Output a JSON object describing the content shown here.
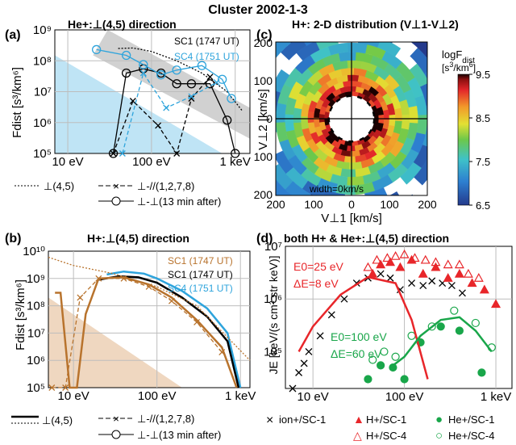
{
  "figure": {
    "title": "Cluster 2002-1-3"
  },
  "legend_a": {
    "dotted": "⊥(4,5)",
    "dashx": "⊥-//(1,2,7,8)",
    "circ": "⊥-⊥(13 min after)"
  },
  "legend_b": {
    "solid": "⊥(4,5)",
    "dashx": "⊥-//(1,2,7,8)",
    "circ": "⊥-⊥(13 min after)"
  },
  "legend_d": [
    {
      "label": "ion+/SC-1",
      "symbol": "×",
      "color": "#000000"
    },
    {
      "label": "H+/SC-1",
      "symbol": "▲",
      "color": "#e8262a"
    },
    {
      "label": "He+/SC-1",
      "symbol": "●",
      "color": "#19a64a"
    },
    {
      "label": "H+/SC-4",
      "symbol": "△",
      "color": "#e8262a"
    },
    {
      "label": "He+/SC-4",
      "symbol": "○",
      "color": "#19a64a"
    }
  ],
  "colors": {
    "sc1_a": "#000000",
    "sc4": "#2ea4dc",
    "sc1_b": "#b8732d",
    "h": "#e8262a",
    "he": "#19a64a",
    "bg_blue": "#bfe4f5",
    "bg_tan": "#efd7c0"
  },
  "chart_data": [
    {
      "id": "a",
      "panel_label": "(a)",
      "title": "He+:⊥(4,5) direction",
      "type": "line",
      "xscale": "log",
      "yscale": "log",
      "xlim": [
        7,
        1500
      ],
      "ylim": [
        100000,
        1000000000
      ],
      "xticks": [
        10,
        100,
        1000
      ],
      "xtick_labels": [
        "10 eV",
        "100 eV",
        "1 keV"
      ],
      "yticks": [
        100000,
        1000000,
        10000000,
        100000000,
        1000000000
      ],
      "ytick_labels": [
        "10⁵",
        "10⁶",
        "10⁷",
        "10⁸",
        "10⁹"
      ],
      "ylabel": "Fdist [s³/km⁶]",
      "annotations": [
        "SC1 (1747 UT)",
        "SC4 (1751 UT)"
      ],
      "series": [
        {
          "name": "SC1 (1747 UT)",
          "style": "dotted",
          "color": "#000000",
          "x": [
            40,
            60,
            100,
            200,
            400,
            800,
            1200
          ],
          "y": [
            250000000,
            260000000,
            200000000,
            100000000,
            40000000,
            10000000,
            2500000
          ]
        },
        {
          "name": "SC1 (1747 UT)",
          "style": "solid-circle",
          "color": "#000000",
          "x": [
            35,
            50,
            80,
            130,
            200,
            300,
            500,
            800,
            1000
          ],
          "y": [
            100000,
            40000000,
            55000000,
            40000000,
            18000000,
            18000000,
            18000000,
            1200000,
            100000
          ]
        },
        {
          "name": "SC1 (1747 UT)",
          "style": "dash-x",
          "color": "#000000",
          "x": [
            35,
            60,
            120,
            200,
            300,
            500
          ],
          "y": [
            100000,
            5000000,
            800000,
            100000,
            6000000,
            30000000
          ]
        },
        {
          "name": "SC4 (1751 UT)",
          "style": "solid-circle",
          "color": "#2ea4dc",
          "x": [
            22,
            50,
            80,
            130,
            200,
            400,
            700,
            900
          ],
          "y": [
            230000000,
            150000000,
            75000000,
            35000000,
            50000000,
            70000000,
            25000000,
            6000000
          ]
        },
        {
          "name": "SC4 (1751 UT)",
          "style": "dash-x",
          "color": "#2ea4dc",
          "x": [
            45,
            80,
            150,
            300,
            600
          ],
          "y": [
            100000,
            40000000,
            3000000,
            7000000,
            20000000
          ]
        }
      ]
    },
    {
      "id": "b",
      "panel_label": "(b)",
      "title": "H+:⊥(4,5) direction",
      "type": "line",
      "xscale": "log",
      "yscale": "log",
      "xlim": [
        5,
        1300
      ],
      "ylim": [
        100000,
        10000000000
      ],
      "xticks": [
        10,
        100,
        1000
      ],
      "xtick_labels": [
        "10 eV",
        "100 eV",
        "1 keV"
      ],
      "yticks": [
        100000,
        1000000,
        10000000,
        100000000,
        1000000000,
        10000000000
      ],
      "ytick_labels": [
        "10⁵",
        "10⁶",
        "10⁷",
        "10⁸",
        "10⁹",
        "10¹⁰"
      ],
      "ylabel": "Fdist [s³/km⁶]",
      "annotations": [
        "SC1 (1747 UT)",
        "SC1 (1747 UT)",
        "SC4 (1751 UT)"
      ],
      "series": [
        {
          "name": "SC4 (1751 UT)",
          "style": "solid",
          "color": "#2ea4dc",
          "x": [
            25,
            40,
            70,
            100,
            200,
            400,
            700,
            1000
          ],
          "y": [
            1400000000,
            1800000000,
            1500000000,
            1000000000,
            350000000,
            80000000,
            10000000,
            100000
          ]
        },
        {
          "name": "SC1 (1747 UT)",
          "style": "solid",
          "color": "#000000",
          "x": [
            20,
            35,
            60,
            100,
            200,
            400,
            700,
            950
          ],
          "y": [
            900000000,
            1200000000,
            1100000000,
            700000000,
            200000000,
            40000000,
            5000000,
            100000
          ]
        },
        {
          "name": "SC1 (1747 UT)",
          "style": "dotted",
          "color": "#b8732d",
          "x": [
            5,
            10,
            30,
            100,
            300,
            1300
          ],
          "y": [
            6000000000,
            3000000000,
            1500000000,
            500000000,
            100000000,
            1000000
          ]
        },
        {
          "name": "SC1 (1747 UT)",
          "style": "solid",
          "color": "#b8732d",
          "x": [
            6,
            7,
            9,
            11,
            14,
            20,
            40,
            80,
            150,
            300,
            600,
            900
          ],
          "y": [
            300000000,
            300000000,
            100000,
            100000,
            50000000,
            1000000000,
            1100000000,
            600000000,
            200000000,
            30000000,
            3000000,
            100000
          ]
        },
        {
          "name": "SC1 (1747 UT)",
          "style": "dash-x",
          "color": "#b8732d",
          "x": [
            5.5,
            8,
            12,
            20,
            40,
            80,
            150,
            300,
            600
          ],
          "y": [
            100000,
            100000,
            200000000,
            1000000000,
            1000000000,
            500000000,
            150000000,
            25000000,
            2000000
          ]
        }
      ]
    },
    {
      "id": "c",
      "panel_label": "(c)",
      "title": "H+: 2-D distribution (V⊥1-V⊥2)",
      "type": "heatmap",
      "xlabel": "V⊥1 [km/s]",
      "ylabel": "V⊥2 [km/s]",
      "xlim": [
        -200,
        200
      ],
      "ylim": [
        -200,
        200
      ],
      "xtick_labels": [
        "200",
        "100",
        "0",
        "100",
        "200"
      ],
      "ytick_labels": [
        "200",
        "100",
        "0",
        "100",
        "200"
      ],
      "annotation": "width=0km/s",
      "colorbar": {
        "label": "logFdist [s³/km⁶]",
        "min": 6.5,
        "max": 9.5,
        "ticks": [
          6.5,
          7.5,
          8.5,
          9.5
        ],
        "tick_labels": [
          "6.5",
          "7.5",
          "8.5",
          "9.5"
        ]
      },
      "radial_profile": {
        "speed_km_s": [
          60,
          80,
          100,
          130,
          160,
          200,
          240,
          280
        ],
        "logFdist": [
          9.5,
          9.2,
          8.9,
          8.4,
          7.9,
          7.3,
          6.9,
          6.6
        ]
      }
    },
    {
      "id": "d",
      "panel_label": "(d)",
      "title": "both H+ & He+:⊥(4,5) direction",
      "type": "scatter",
      "xscale": "log",
      "yscale": "log",
      "xlim": [
        5,
        1500
      ],
      "ylim": [
        20000,
        10000000
      ],
      "xticks": [
        10,
        100,
        1000
      ],
      "xtick_labels": [
        "10 eV",
        "100 eV",
        "1 keV"
      ],
      "yticks": [
        100000,
        1000000,
        10000000
      ],
      "ytick_labels": [
        "10⁵",
        "10⁶",
        "10⁷"
      ],
      "ylabel": "JE [keV/(s cm² str keV)]",
      "annotations": [
        {
          "text": "E0=25 eV",
          "color": "#e8262a"
        },
        {
          "text": "ΔE=8 eV",
          "color": "#e8262a"
        },
        {
          "text": "E0=100 eV",
          "color": "#19a64a"
        },
        {
          "text": "ΔE=60 eV",
          "color": "#19a64a"
        }
      ],
      "series": [
        {
          "name": "ion+/SC-1",
          "marker": "x",
          "color": "#000000",
          "x": [
            6,
            7,
            8,
            9,
            12,
            16,
            22,
            30,
            40,
            55,
            70,
            90,
            120,
            160,
            200,
            260,
            330,
            430
          ],
          "y": [
            20000,
            40000,
            60000,
            100000,
            200000,
            500000,
            1000000,
            2000000,
            2500000,
            3000000,
            2500000,
            1500000,
            2000000,
            1800000,
            2200000,
            2000000,
            1800000,
            1300000
          ]
        },
        {
          "name": "H+/SC-1",
          "marker": "filled-triangle",
          "color": "#e8262a",
          "x": [
            45,
            55,
            70,
            90,
            120,
            160,
            220,
            300,
            400,
            550,
            750,
            1000
          ],
          "y": [
            3000000,
            4500000,
            5000000,
            4000000,
            5500000,
            3000000,
            4000000,
            2500000,
            3000000,
            2000000,
            1500000,
            800000
          ]
        },
        {
          "name": "H+/SC-4",
          "marker": "open-triangle",
          "color": "#e8262a",
          "x": [
            40,
            50,
            65,
            80,
            100,
            130,
            170,
            220,
            300,
            400,
            500,
            650
          ],
          "y": [
            4000000,
            5500000,
            6000000,
            6500000,
            7000000,
            6000000,
            5500000,
            5000000,
            4500000,
            4500000,
            3000000,
            2500000
          ]
        },
        {
          "name": "He+/SC-1",
          "marker": "filled-circle",
          "color": "#19a64a",
          "x": [
            40,
            55,
            75,
            100,
            150,
            250,
            400,
            700
          ],
          "y": [
            30000,
            55000,
            50000,
            30000,
            150000,
            300000,
            250000,
            40000
          ]
        },
        {
          "name": "He+/SC-4",
          "marker": "open-circle",
          "color": "#19a64a",
          "x": [
            45,
            60,
            80,
            120,
            200,
            350,
            600,
            900
          ],
          "y": [
            70000,
            100000,
            80000,
            200000,
            300000,
            600000,
            350000,
            120000
          ]
        },
        {
          "name": "fit H+",
          "style": "solid",
          "color": "#e8262a",
          "x": [
            7,
            10,
            20,
            40,
            80,
            120,
            180
          ],
          "y": [
            100000,
            300000,
            1200000,
            2600000,
            2000000,
            400000,
            30000
          ]
        },
        {
          "name": "fit He+",
          "style": "solid",
          "color": "#19a64a",
          "x": [
            70,
            100,
            150,
            250,
            400,
            600,
            900
          ],
          "y": [
            50000,
            80000,
            200000,
            400000,
            450000,
            250000,
            100000
          ]
        }
      ]
    }
  ]
}
